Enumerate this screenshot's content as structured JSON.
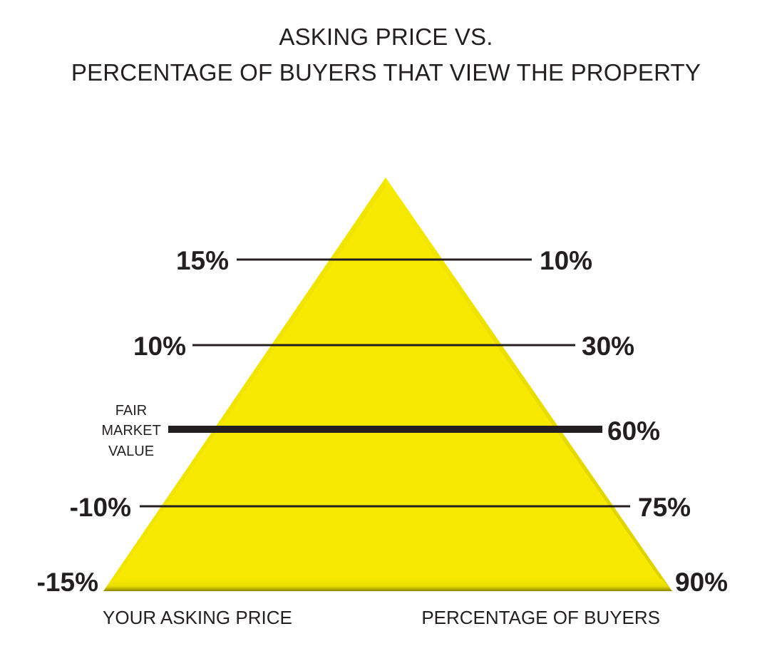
{
  "title": {
    "line1": "ASKING PRICE VS.",
    "line2": "PERCENTAGE OF BUYERS THAT VIEW THE PROPERTY"
  },
  "colors": {
    "pyramid_fill": "#f7ea00",
    "pyramid_edge": "#c9bd00",
    "line": "#231f20",
    "text": "#231f20"
  },
  "rows": [
    {
      "asking_price": "15%",
      "buyers": "10%",
      "is_fair_market_value": false
    },
    {
      "asking_price": "10%",
      "buyers": "30%",
      "is_fair_market_value": false
    },
    {
      "asking_price": "FAIR MARKET VALUE",
      "buyers": "60%",
      "is_fair_market_value": true,
      "fmv_lines": [
        "FAIR",
        "MARKET",
        "VALUE"
      ]
    },
    {
      "asking_price": "-10%",
      "buyers": "75%",
      "is_fair_market_value": false
    },
    {
      "asking_price": "-15%",
      "buyers": "90%",
      "is_fair_market_value": false
    }
  ],
  "captions": {
    "left": "YOUR ASKING PRICE",
    "right": "PERCENTAGE OF BUYERS"
  }
}
